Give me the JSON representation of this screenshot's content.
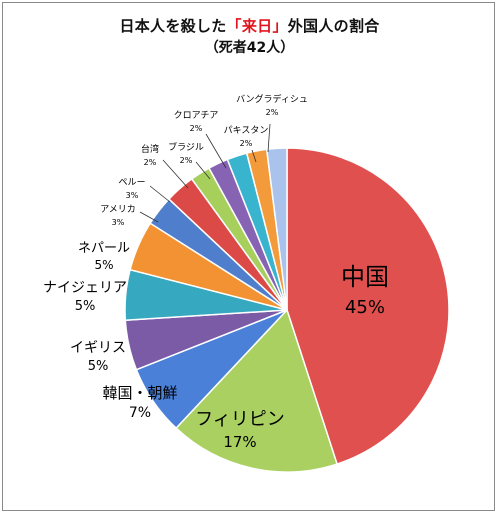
{
  "title": {
    "prefix": "日本人を殺した",
    "highlight": "「来日」",
    "suffix": "外国人の割合",
    "subtitle": "（死者42人）"
  },
  "chart_data": {
    "type": "pie",
    "slices": [
      {
        "label": "中国",
        "value": 45,
        "value_label": "45%",
        "color": "#e0504e"
      },
      {
        "label": "フィリピン",
        "value": 17,
        "value_label": "17%",
        "color": "#a9d060"
      },
      {
        "label": "韓国・朝鮮",
        "value": 7,
        "value_label": "7%",
        "color": "#4a80d8"
      },
      {
        "label": "イギリス",
        "value": 5,
        "value_label": "5%",
        "color": "#7b5aa6"
      },
      {
        "label": "ナイジェリア",
        "value": 5,
        "value_label": "5%",
        "color": "#36a8c0"
      },
      {
        "label": "ネパール",
        "value": 5,
        "value_label": "5%",
        "color": "#f29232"
      },
      {
        "label": "アメリカ",
        "value": 3,
        "value_label": "3%",
        "color": "#4f7fcc"
      },
      {
        "label": "ペルー",
        "value": 3,
        "value_label": "3%",
        "color": "#dc4a48"
      },
      {
        "label": "台湾",
        "value": 2,
        "value_label": "2%",
        "color": "#a6cf5c"
      },
      {
        "label": "ブラジル",
        "value": 2,
        "value_label": "2%",
        "color": "#8763b4"
      },
      {
        "label": "クロアチア",
        "value": 2,
        "value_label": "2%",
        "color": "#39b4cf"
      },
      {
        "label": "パキスタン",
        "value": 2,
        "value_label": "2%",
        "color": "#f39a3a"
      },
      {
        "label": "バングラディシュ",
        "value": 2,
        "value_label": "2%",
        "color": "#a9c3ec"
      }
    ]
  }
}
